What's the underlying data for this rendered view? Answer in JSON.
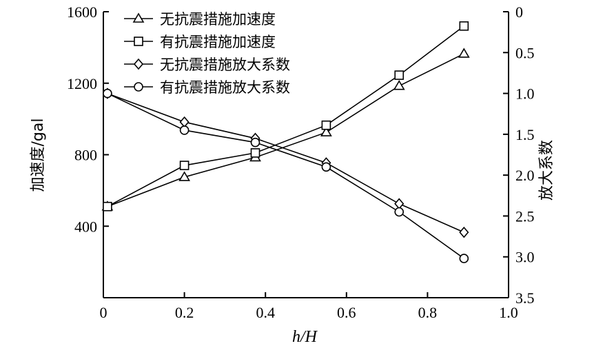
{
  "chart_data": {
    "type": "line",
    "title": "",
    "xlabel": "h/H",
    "ylabel_left": "加速度/gal",
    "ylabel_right": "放大系数",
    "xlim": [
      0,
      1.0
    ],
    "ylim_left": [
      0,
      1600
    ],
    "ylim_right": [
      3.5,
      0
    ],
    "x_ticks": [
      "0",
      "0.2",
      "0.4",
      "0.6",
      "0.8",
      "1.0"
    ],
    "y_left_ticks": [
      "400",
      "800",
      "1200",
      "1600"
    ],
    "y_right_ticks": [
      "0",
      "0.5",
      "1.0",
      "1.5",
      "2.0",
      "2.5",
      "3.0",
      "3.5"
    ],
    "legend_position": "top-left",
    "series": [
      {
        "name": "无抗震措施加速度",
        "axis": "left",
        "marker": "triangle",
        "x": [
          0.01,
          0.2,
          0.375,
          0.55,
          0.73,
          0.89
        ],
        "values": [
          510,
          675,
          785,
          925,
          1185,
          1365
        ]
      },
      {
        "name": "有抗震措施加速度",
        "axis": "left",
        "marker": "square",
        "x": [
          0.01,
          0.2,
          0.375,
          0.55,
          0.73,
          0.89
        ],
        "values": [
          510,
          740,
          810,
          965,
          1245,
          1520
        ]
      },
      {
        "name": "无抗震措施放大系数",
        "axis": "right",
        "marker": "diamond",
        "x": [
          0.01,
          0.2,
          0.375,
          0.55,
          0.73,
          0.89
        ],
        "values": [
          1.0,
          1.35,
          1.55,
          1.85,
          2.35,
          2.7
        ]
      },
      {
        "name": "有抗震措施放大系数",
        "axis": "right",
        "marker": "circle",
        "x": [
          0.01,
          0.2,
          0.375,
          0.55,
          0.73,
          0.89
        ],
        "values": [
          1.0,
          1.45,
          1.6,
          1.9,
          2.45,
          3.02
        ]
      }
    ]
  }
}
